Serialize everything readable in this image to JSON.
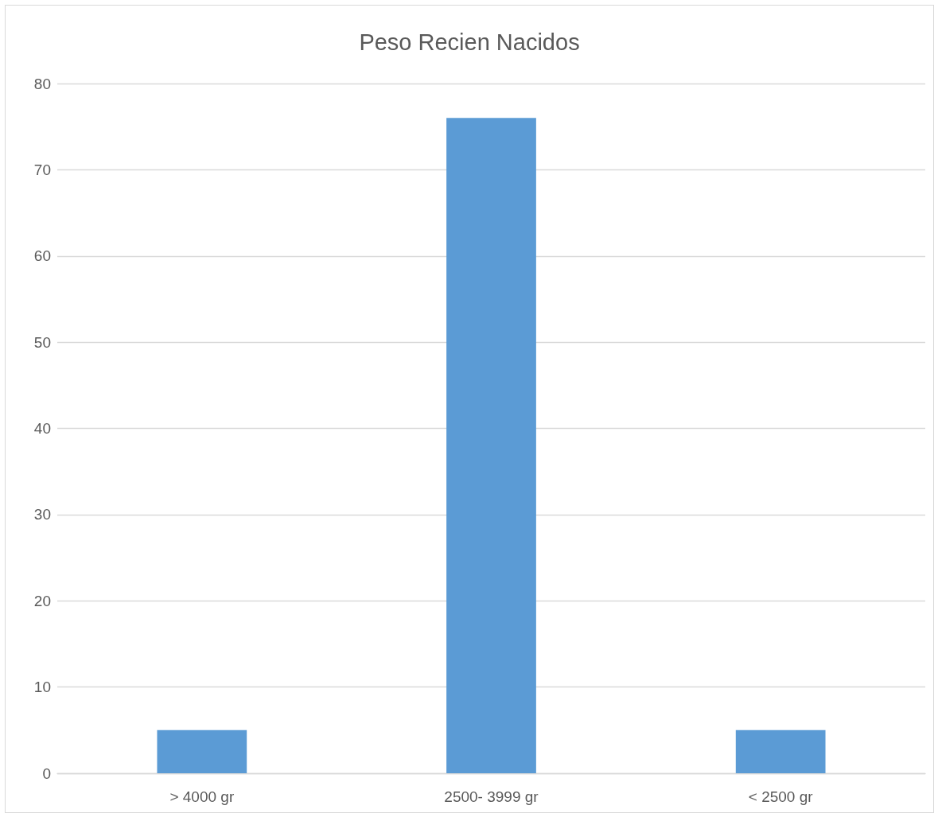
{
  "chart_data": {
    "type": "bar",
    "title": "Peso Recien Nacidos",
    "categories": [
      "> 4000 gr",
      "2500- 3999 gr",
      "< 2500 gr"
    ],
    "values": [
      5,
      76,
      5
    ],
    "color": "#5b9bd5",
    "ylim": [
      0,
      80
    ],
    "yticks": [
      0,
      10,
      20,
      30,
      40,
      50,
      60,
      70,
      80
    ],
    "grid": "y"
  }
}
